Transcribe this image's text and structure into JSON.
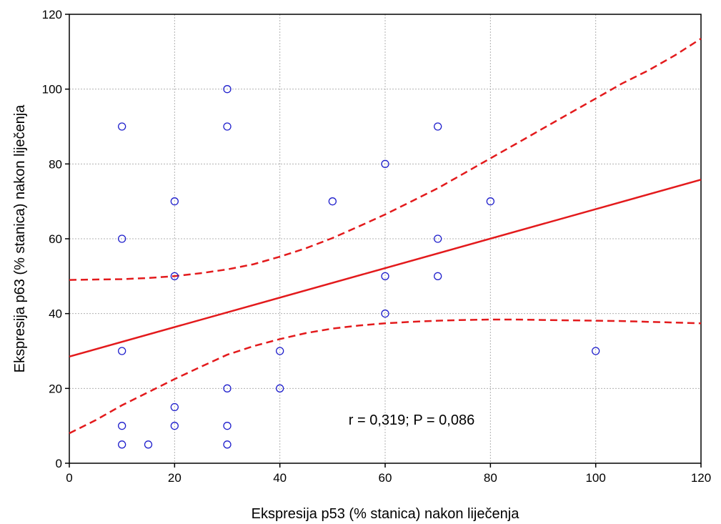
{
  "chart_data": {
    "type": "scatter",
    "title": "",
    "xlabel": "Ekspresija p53 (% stanica) nakon liječenja",
    "ylabel": "Ekspresija p63 (% stanica) nakon liječenja",
    "xlim": [
      0,
      120
    ],
    "ylim": [
      0,
      120
    ],
    "x_ticks": [
      "0",
      "20",
      "40",
      "60",
      "80",
      "100",
      "120"
    ],
    "y_ticks": [
      "0",
      "20",
      "40",
      "60",
      "80",
      "100",
      "120"
    ],
    "grid": true,
    "annotation": "r = 0,319; P = 0,086",
    "colors": {
      "points": "#1f1fcc",
      "regression": "#e31a1c",
      "grid": "#b0b0b0"
    },
    "points": [
      {
        "x": 10,
        "y": 90
      },
      {
        "x": 10,
        "y": 60
      },
      {
        "x": 10,
        "y": 30
      },
      {
        "x": 10,
        "y": 10
      },
      {
        "x": 10,
        "y": 5
      },
      {
        "x": 15,
        "y": 5
      },
      {
        "x": 20,
        "y": 70
      },
      {
        "x": 20,
        "y": 50
      },
      {
        "x": 20,
        "y": 15
      },
      {
        "x": 20,
        "y": 10
      },
      {
        "x": 30,
        "y": 100
      },
      {
        "x": 30,
        "y": 90
      },
      {
        "x": 30,
        "y": 20
      },
      {
        "x": 30,
        "y": 10
      },
      {
        "x": 30,
        "y": 5
      },
      {
        "x": 40,
        "y": 30
      },
      {
        "x": 40,
        "y": 20
      },
      {
        "x": 50,
        "y": 70
      },
      {
        "x": 60,
        "y": 80
      },
      {
        "x": 60,
        "y": 50
      },
      {
        "x": 60,
        "y": 40
      },
      {
        "x": 70,
        "y": 90
      },
      {
        "x": 70,
        "y": 60
      },
      {
        "x": 70,
        "y": 50
      },
      {
        "x": 80,
        "y": 70
      },
      {
        "x": 100,
        "y": 30
      }
    ],
    "regression_line": {
      "x": [
        0,
        120
      ],
      "y": [
        28.5,
        75.8
      ]
    },
    "confidence_upper": {
      "x": [
        0,
        5,
        10,
        15,
        20,
        25,
        30,
        35,
        40,
        45,
        50,
        55,
        60,
        65,
        70,
        75,
        80,
        85,
        90,
        95,
        100,
        105,
        110,
        115,
        120
      ],
      "y": [
        49,
        49.1,
        49.2,
        49.5,
        50,
        50.8,
        51.8,
        53.2,
        55.2,
        57.5,
        60.2,
        63.3,
        66.5,
        70,
        73.5,
        77.5,
        81.5,
        85.5,
        89.5,
        93.5,
        97.5,
        101.5,
        105,
        109,
        113.5
      ]
    },
    "confidence_lower": {
      "x": [
        0,
        5,
        10,
        15,
        20,
        25,
        30,
        35,
        40,
        45,
        50,
        55,
        60,
        65,
        70,
        75,
        80,
        85,
        90,
        95,
        100,
        105,
        110,
        115,
        120
      ],
      "y": [
        8,
        11.5,
        15.5,
        19,
        22.5,
        25.8,
        29,
        31.3,
        33.2,
        34.8,
        36,
        36.8,
        37.4,
        37.8,
        38.1,
        38.3,
        38.4,
        38.4,
        38.3,
        38.2,
        38.1,
        38,
        37.8,
        37.6,
        37.4
      ]
    }
  }
}
